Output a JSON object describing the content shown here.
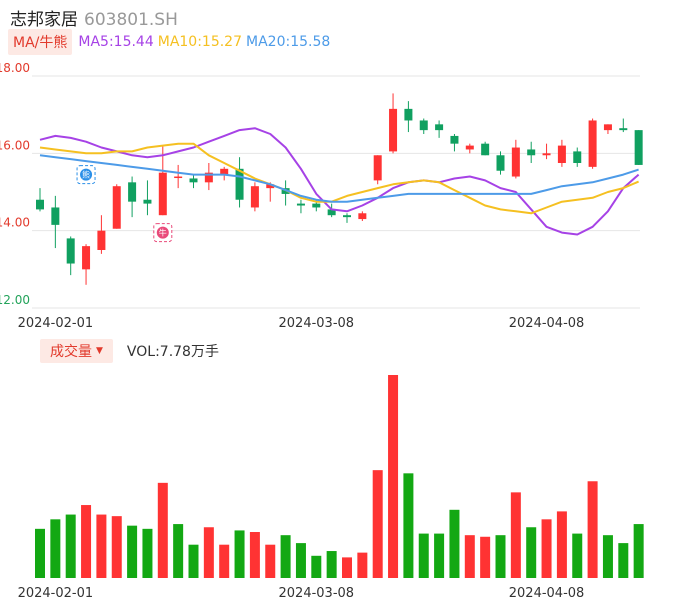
{
  "header": {
    "name": "志邦家居",
    "code": "603801.SH"
  },
  "ma_bar": {
    "toggle": "MA/牛熊",
    "ma5": "MA5:15.44",
    "ma10": "MA10:15.27",
    "ma20": "MA20:15.58"
  },
  "volume_bar": {
    "toggle": "成交量",
    "value": "VOL:7.78万手"
  },
  "colors": {
    "up": "#ff3333",
    "down": "#10a060",
    "vol_down": "#13a813",
    "ma5": "#a642e6",
    "ma10": "#f5c021",
    "ma20": "#4d9be8",
    "grid": "#e6e6e6"
  },
  "markers": {
    "bear": "熊",
    "bull": "牛"
  },
  "chart_data": [
    {
      "type": "candlestick",
      "y_ticks": [
        "18.00",
        "16.00",
        "14.00",
        "12.00"
      ],
      "ylim": [
        12,
        18
      ],
      "x_labels": [
        "2024-02-01",
        "2024-03-08",
        "2024-04-08"
      ],
      "x_label_index": [
        1,
        18,
        33
      ],
      "grid": true,
      "candles": [
        {
          "o": 14.8,
          "c": 14.55,
          "h": 15.1,
          "l": 14.5
        },
        {
          "o": 14.6,
          "c": 14.15,
          "h": 14.9,
          "l": 13.55
        },
        {
          "o": 13.8,
          "c": 13.15,
          "h": 13.85,
          "l": 12.85
        },
        {
          "o": 13.0,
          "c": 13.6,
          "h": 13.65,
          "l": 12.6
        },
        {
          "o": 13.5,
          "c": 14.0,
          "h": 14.4,
          "l": 13.4
        },
        {
          "o": 14.05,
          "c": 15.15,
          "h": 15.2,
          "l": 14.05
        },
        {
          "o": 15.25,
          "c": 14.75,
          "h": 15.4,
          "l": 14.35
        },
        {
          "o": 14.8,
          "c": 14.7,
          "h": 15.3,
          "l": 14.4
        },
        {
          "o": 14.4,
          "c": 15.5,
          "h": 16.2,
          "l": 14.4
        },
        {
          "o": 15.4,
          "c": 15.4,
          "h": 15.7,
          "l": 15.1
        },
        {
          "o": 15.35,
          "c": 15.25,
          "h": 15.45,
          "l": 15.1
        },
        {
          "o": 15.25,
          "c": 15.5,
          "h": 15.75,
          "l": 15.05
        },
        {
          "o": 15.45,
          "c": 15.6,
          "h": 15.65,
          "l": 15.3
        },
        {
          "o": 15.6,
          "c": 14.8,
          "h": 15.9,
          "l": 14.6
        },
        {
          "o": 14.6,
          "c": 15.15,
          "h": 15.25,
          "l": 14.5
        },
        {
          "o": 15.1,
          "c": 15.2,
          "h": 15.25,
          "l": 14.75
        },
        {
          "o": 15.1,
          "c": 14.95,
          "h": 15.3,
          "l": 14.65
        },
        {
          "o": 14.7,
          "c": 14.65,
          "h": 14.8,
          "l": 14.45
        },
        {
          "o": 14.7,
          "c": 14.6,
          "h": 14.8,
          "l": 14.5
        },
        {
          "o": 14.55,
          "c": 14.4,
          "h": 14.7,
          "l": 14.35
        },
        {
          "o": 14.4,
          "c": 14.35,
          "h": 14.45,
          "l": 14.2
        },
        {
          "o": 14.3,
          "c": 14.45,
          "h": 14.5,
          "l": 14.25
        },
        {
          "o": 15.3,
          "c": 15.95,
          "h": 15.95,
          "l": 15.2
        },
        {
          "o": 16.05,
          "c": 17.15,
          "h": 17.55,
          "l": 16.0
        },
        {
          "o": 17.15,
          "c": 16.85,
          "h": 17.35,
          "l": 16.55
        },
        {
          "o": 16.85,
          "c": 16.6,
          "h": 16.9,
          "l": 16.5
        },
        {
          "o": 16.75,
          "c": 16.6,
          "h": 16.85,
          "l": 16.4
        },
        {
          "o": 16.45,
          "c": 16.25,
          "h": 16.5,
          "l": 16.05
        },
        {
          "o": 16.1,
          "c": 16.2,
          "h": 16.25,
          "l": 16.0
        },
        {
          "o": 16.25,
          "c": 15.95,
          "h": 16.3,
          "l": 15.95
        },
        {
          "o": 15.95,
          "c": 15.55,
          "h": 16.05,
          "l": 15.45
        },
        {
          "o": 15.4,
          "c": 16.15,
          "h": 16.35,
          "l": 15.35
        },
        {
          "o": 16.1,
          "c": 15.95,
          "h": 16.3,
          "l": 15.75
        },
        {
          "o": 15.95,
          "c": 16.0,
          "h": 16.25,
          "l": 15.85
        },
        {
          "o": 15.75,
          "c": 16.2,
          "h": 16.35,
          "l": 15.65
        },
        {
          "o": 16.05,
          "c": 15.75,
          "h": 16.15,
          "l": 15.65
        },
        {
          "o": 15.65,
          "c": 16.85,
          "h": 16.9,
          "l": 15.6
        },
        {
          "o": 16.6,
          "c": 16.75,
          "h": 16.75,
          "l": 16.5
        },
        {
          "o": 16.65,
          "c": 16.6,
          "h": 16.9,
          "l": 16.55
        },
        {
          "o": 16.6,
          "c": 15.7,
          "h": 16.6,
          "l": 15.7
        }
      ],
      "series": [
        {
          "name": "MA5",
          "values": [
            16.35,
            16.45,
            16.4,
            16.3,
            16.15,
            16.05,
            15.95,
            15.9,
            15.95,
            16.05,
            16.15,
            16.3,
            16.45,
            16.6,
            16.65,
            16.5,
            16.15,
            15.6,
            14.95,
            14.55,
            14.5,
            14.65,
            14.85,
            15.1,
            15.25,
            15.3,
            15.25,
            15.35,
            15.4,
            15.3,
            15.1,
            15.0,
            14.55,
            14.1,
            13.95,
            13.9,
            14.1,
            14.5,
            15.1,
            15.45
          ]
        },
        {
          "name": "MA10",
          "values": [
            16.15,
            16.1,
            16.05,
            16.0,
            16.0,
            16.05,
            16.05,
            16.15,
            16.2,
            16.25,
            16.25,
            15.95,
            15.75,
            15.55,
            15.35,
            15.2,
            15.05,
            14.85,
            14.75,
            14.75,
            14.9,
            15.0,
            15.1,
            15.2,
            15.25,
            15.3,
            15.25,
            15.05,
            14.85,
            14.65,
            14.55,
            14.5,
            14.45,
            14.6,
            14.75,
            14.8,
            14.85,
            15.0,
            15.1,
            15.27
          ]
        },
        {
          "name": "MA20",
          "values": [
            15.95,
            15.9,
            15.85,
            15.8,
            15.75,
            15.7,
            15.65,
            15.6,
            15.55,
            15.5,
            15.45,
            15.45,
            15.45,
            15.4,
            15.3,
            15.2,
            15.05,
            14.9,
            14.8,
            14.75,
            14.75,
            14.8,
            14.85,
            14.9,
            14.95,
            14.95,
            14.95,
            14.95,
            14.95,
            14.95,
            14.95,
            14.95,
            14.95,
            15.05,
            15.15,
            15.2,
            15.25,
            15.35,
            15.45,
            15.58
          ]
        }
      ]
    },
    {
      "type": "bar",
      "title": "成交量",
      "x_labels": [
        "2024-02-01",
        "2024-03-08",
        "2024-04-08"
      ],
      "values": [
        3.1,
        3.7,
        4.0,
        4.6,
        4.0,
        3.9,
        3.3,
        3.1,
        6.0,
        3.4,
        2.1,
        3.2,
        2.1,
        3.0,
        2.9,
        2.1,
        2.7,
        2.2,
        1.4,
        1.7,
        1.3,
        1.6,
        6.8,
        12.8,
        6.6,
        2.8,
        2.8,
        4.3,
        2.7,
        2.6,
        2.7,
        5.4,
        3.2,
        3.7,
        4.2,
        2.8,
        6.1,
        2.7,
        2.2,
        3.4
      ],
      "up": [
        false,
        false,
        false,
        true,
        true,
        true,
        false,
        false,
        true,
        false,
        false,
        true,
        true,
        false,
        true,
        true,
        false,
        false,
        false,
        false,
        true,
        true,
        true,
        true,
        false,
        false,
        false,
        false,
        true,
        true,
        false,
        true,
        false,
        true,
        true,
        false,
        true,
        false,
        false,
        false
      ]
    }
  ]
}
